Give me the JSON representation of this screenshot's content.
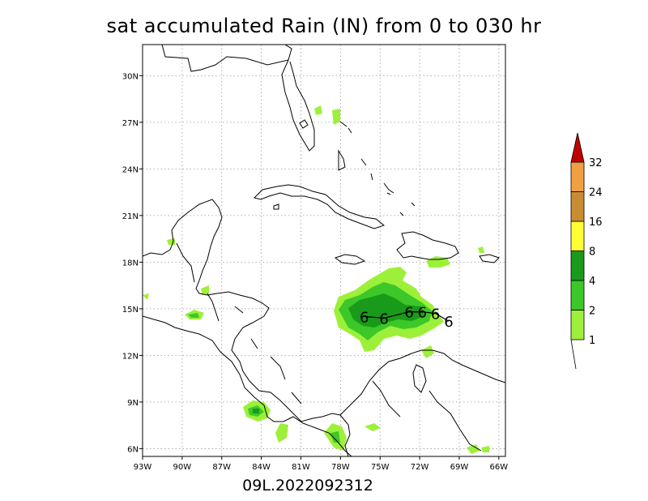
{
  "title": "sat accumulated Rain (IN) from 0 to 030 hr",
  "stamp": "09L.2022092312",
  "map": {
    "lon_range": [
      -93,
      -65.5
    ],
    "lat_range": [
      5.5,
      32
    ],
    "x_ticks": [
      {
        "lon": -93,
        "label": "93W"
      },
      {
        "lon": -90,
        "label": "90W"
      },
      {
        "lon": -87,
        "label": "87W"
      },
      {
        "lon": -84,
        "label": "84W"
      },
      {
        "lon": -81,
        "label": "81W"
      },
      {
        "lon": -78,
        "label": "78W"
      },
      {
        "lon": -75,
        "label": "75W"
      },
      {
        "lon": -72,
        "label": "72W"
      },
      {
        "lon": -69,
        "label": "69W"
      },
      {
        "lon": -66,
        "label": "66W"
      }
    ],
    "y_ticks": [
      {
        "lat": 6,
        "label": "6N"
      },
      {
        "lat": 9,
        "label": "9N"
      },
      {
        "lat": 12,
        "label": "12N"
      },
      {
        "lat": 15,
        "label": "15N"
      },
      {
        "lat": 18,
        "label": "18N"
      },
      {
        "lat": 21,
        "label": "21N"
      },
      {
        "lat": 24,
        "label": "24N"
      },
      {
        "lat": 27,
        "label": "27N"
      },
      {
        "lat": 30,
        "label": "30N"
      }
    ],
    "grid": true,
    "track_symbol": "6",
    "track_points": [
      {
        "lon": -76.2,
        "lat": 14.5
      },
      {
        "lon": -74.7,
        "lat": 14.4
      },
      {
        "lon": -72.8,
        "lat": 14.8
      },
      {
        "lon": -71.8,
        "lat": 14.8
      },
      {
        "lon": -70.8,
        "lat": 14.7
      },
      {
        "lon": -69.8,
        "lat": 14.2
      }
    ]
  },
  "colorbar": {
    "labels": [
      "1",
      "2",
      "4",
      "8",
      "16",
      "24",
      "32"
    ],
    "colors": [
      "#9cf03a",
      "#3cc828",
      "#1a9a1a",
      "#ffff33",
      "#c88c32",
      "#f0a040",
      "#c00000"
    ]
  },
  "precip_colors": {
    "light": "#9cf03a",
    "medium": "#3cc828",
    "heavy": "#1a9a1a"
  }
}
